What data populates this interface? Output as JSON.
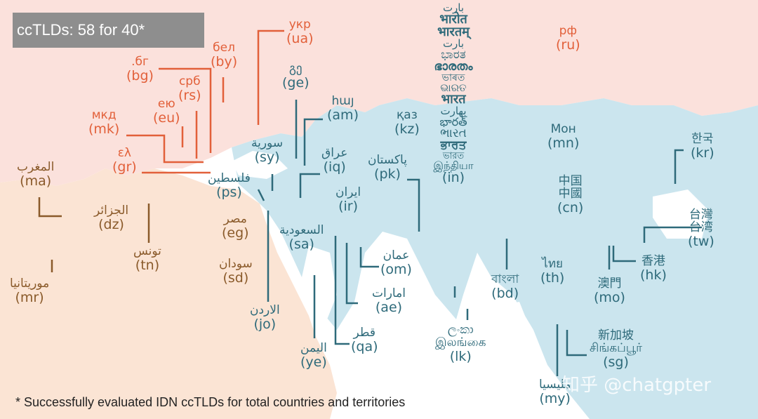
{
  "header": {
    "title": "ccTLDs: 58 for 40*"
  },
  "footnote": "* Successfully evaluated IDN ccTLDs for total countries and territories",
  "watermark": "知乎 @chatgpter",
  "colors": {
    "europe": "#e2603a",
    "africa": "#8a5a2a",
    "asia": "#2e6a7a",
    "sea": "#ffffff"
  },
  "europe": {
    "ukr": {
      "script": "укр",
      "code": "(ua)"
    },
    "bel": {
      "script": "бел",
      "code": "(by)"
    },
    "bg": {
      "script": ".бг",
      "code": "(bg)"
    },
    "srb": {
      "script": "срб",
      "code": "(rs)"
    },
    "eu": {
      "script": "ею",
      "code": "(eu)"
    },
    "mkd": {
      "script": "мкд",
      "code": "(mk)"
    },
    "gr": {
      "script": "ελ",
      "code": "(gr)"
    },
    "rf": {
      "script": "рф",
      "code": "(ru)"
    }
  },
  "africa": {
    "ma": {
      "script": "المغرب",
      "code": "(ma)"
    },
    "dz": {
      "script": "الجزائر",
      "code": "(dz)"
    },
    "tn": {
      "script": "تونس",
      "code": "(tn)"
    },
    "mr": {
      "script": "موريتانيا",
      "code": "(mr)"
    },
    "eg": {
      "script": "مصر",
      "code": "(eg)"
    },
    "sd": {
      "script": "سودان",
      "code": "(sd)"
    }
  },
  "asia": {
    "ge": {
      "script": "გე",
      "code": "(ge)"
    },
    "am": {
      "script": "հայ",
      "code": "(am)"
    },
    "sy": {
      "script": "سورية",
      "code": "(sy)"
    },
    "iq": {
      "script": "عراق",
      "code": "(iq)"
    },
    "ps": {
      "script": "فلسطين",
      "code": "(ps)"
    },
    "ir": {
      "script": "ایران",
      "code": "(ir)"
    },
    "kz": {
      "script": "қаз",
      "code": "(kz)"
    },
    "pk": {
      "script": "پاکستان",
      "code": "(pk)"
    },
    "sa": {
      "script": "السعودية",
      "code": "(sa)"
    },
    "om": {
      "script": "عمان",
      "code": "(om)"
    },
    "ae": {
      "script": "امارات",
      "code": "(ae)"
    },
    "jo": {
      "script": "الاردن",
      "code": "(jo)"
    },
    "qa": {
      "script": "قطر",
      "code": "(qa)"
    },
    "ye": {
      "script": "اليمن",
      "code": "(ye)"
    },
    "lk": {
      "script": "ලංකා",
      "script2": "இலங்கை",
      "code": "(lk)"
    },
    "bd": {
      "script": "বাংলা",
      "code": "(bd)"
    },
    "th": {
      "script": "ไทย",
      "code": "(th)"
    },
    "my": {
      "script": "مليسيا",
      "code": "(my)"
    },
    "sg": {
      "script": "新加坡",
      "script2": "சிங்கப்பூர்",
      "code": "(sg)"
    },
    "mo": {
      "script": "澳門",
      "code": "(mo)"
    },
    "hk": {
      "script": "香港",
      "code": "(hk)"
    },
    "tw": {
      "script": "台灣",
      "script2": "台湾",
      "code": "(tw)"
    },
    "cn": {
      "script": "中国",
      "script2": "中國",
      "code": "(cn)"
    },
    "mn": {
      "script": "Мон",
      "code": "(mn)"
    },
    "kr": {
      "script": "한국",
      "code": "(kr)"
    }
  },
  "india": {
    "scripts": [
      "ﺑﺎرت",
      "भारोत",
      "भारतम्",
      "بارت",
      "ಭಾರತ",
      "ഭാരതം",
      "ভাৰত",
      "ଭାରତ",
      "भारत",
      "بھارت",
      "భారత్",
      "ભારત",
      "ਭਾਰਤ",
      "ভারত",
      "இந்தியா"
    ],
    "code": "(in)"
  }
}
